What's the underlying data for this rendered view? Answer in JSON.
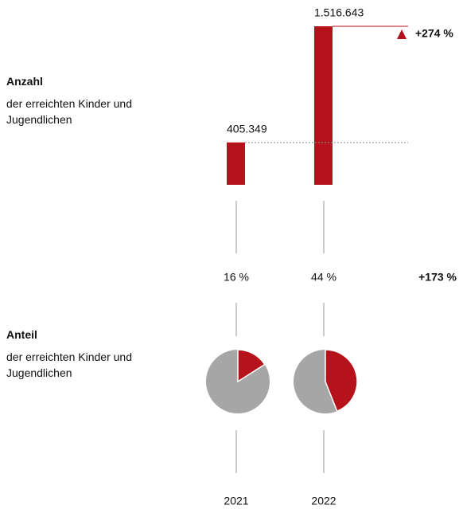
{
  "chart_data": [
    {
      "type": "bar",
      "title": "Anzahl",
      "subtitle": "der erreichten Kinder und Jugendlichen",
      "values": [
        405349,
        1516643
      ],
      "value_labels": [
        "405.349",
        "1.516.643"
      ],
      "color": "#b5121b",
      "change": "+274 %"
    },
    {
      "type": "pie",
      "title": "Anteil",
      "subtitle": "der erreichten Kinder und Jugendlichen",
      "categories": [
        "2021",
        "2022"
      ],
      "values": [
        16,
        44
      ],
      "value_labels": [
        "16 %",
        "44 %"
      ],
      "color": "#b5121b",
      "rest_color": "#a6a6a6",
      "change": "+173 %"
    }
  ]
}
